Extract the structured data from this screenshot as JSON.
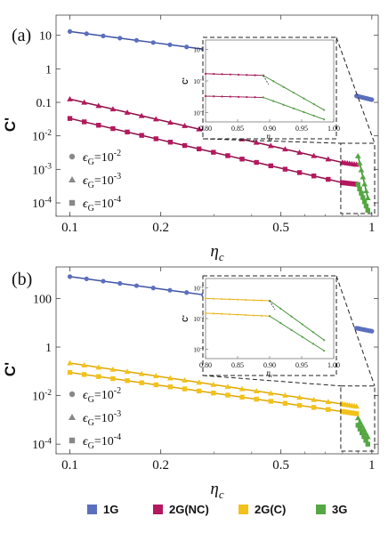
{
  "figure": {
    "legend_items": [
      {
        "key": "1G",
        "label": "1G",
        "color": "#5B6FBF"
      },
      {
        "key": "2GNC",
        "label": "2G(NC)",
        "color": "#B5185E"
      },
      {
        "key": "2GC",
        "label": "2G(C)",
        "color": "#F2C21A"
      },
      {
        "key": "3G",
        "label": "3G",
        "color": "#55A744"
      }
    ]
  },
  "chart_data": [
    {
      "type": "line",
      "panel_label": "(a)",
      "xlabel": "η",
      "xlabel_sub": "c",
      "ylabel": "C'",
      "xscale": "log",
      "yscale": "log",
      "xlim": [
        0.09,
        1.05
      ],
      "ylim": [
        4e-05,
        40
      ],
      "x_ticks": [
        {
          "v": 0.1,
          "label": "0.1"
        },
        {
          "v": 0.2,
          "label": "0.2"
        },
        {
          "v": 0.5,
          "label": "0.5"
        },
        {
          "v": 1,
          "label": "1"
        }
      ],
      "y_ticks": [
        {
          "v": 10,
          "base": "10",
          "exp": ""
        },
        {
          "v": 1,
          "base": "1",
          "exp": ""
        },
        {
          "v": 0.1,
          "base": "0.1",
          "exp": ""
        },
        {
          "v": 0.01,
          "base": "10",
          "exp": "-2"
        },
        {
          "v": 0.001,
          "base": "10",
          "exp": "-3"
        },
        {
          "v": 0.0001,
          "base": "10",
          "exp": "-4"
        }
      ],
      "marker_legend": [
        {
          "marker": "circle",
          "text_pre": "ϵ",
          "text_sub": "G",
          "text_post": "=10",
          "text_exp": "-2"
        },
        {
          "marker": "triangle",
          "text_pre": "ϵ",
          "text_sub": "G",
          "text_post": "=10",
          "text_exp": "-3"
        },
        {
          "marker": "square",
          "text_pre": "ϵ",
          "text_sub": "G",
          "text_post": "=10",
          "text_exp": "-4"
        }
      ],
      "series": [
        {
          "group": "1G",
          "marker": "circle",
          "x0": 0.1,
          "x1": 0.46,
          "y0": 13,
          "y1": 2.1,
          "n": 13
        },
        {
          "group": "1G",
          "marker": "circle",
          "x0": 0.89,
          "x1": 1.0,
          "y0": 0.155,
          "y1": 0.12,
          "n": 11
        },
        {
          "group": "2GNC",
          "marker": "triangle",
          "x0": 0.1,
          "x1": 0.8,
          "y0": 0.125,
          "y1": 0.0016,
          "n": 20
        },
        {
          "group": "2GNC",
          "marker": "triangle",
          "x0": 0.8,
          "x1": 0.89,
          "y0": 0.0016,
          "y1": 0.0014,
          "n": 7
        },
        {
          "group": "3G",
          "marker": "triangle",
          "x0": 0.9,
          "x1": 0.97,
          "y0": 0.0025,
          "y1": 0.00014,
          "n": 7
        },
        {
          "group": "2GNC",
          "marker": "square",
          "x0": 0.1,
          "x1": 0.8,
          "y0": 0.033,
          "y1": 0.0004,
          "n": 20
        },
        {
          "group": "2GNC",
          "marker": "square",
          "x0": 0.8,
          "x1": 0.89,
          "y0": 0.0004,
          "y1": 0.00036,
          "n": 7
        },
        {
          "group": "3G",
          "marker": "square",
          "x0": 0.9,
          "x1": 0.97,
          "y0": 0.00035,
          "y1": 6e-05,
          "n": 7
        }
      ],
      "inset": {
        "xlim": [
          0.8,
          1.0
        ],
        "ylim": [
          5e-05,
          0.02
        ],
        "x_ticks": [
          {
            "v": 0.8,
            "label": "0.80"
          },
          {
            "v": 0.85,
            "label": "0.85"
          },
          {
            "v": 0.9,
            "label": "0.90"
          },
          {
            "v": 0.95,
            "label": "0.95"
          },
          {
            "v": 1.0,
            "label": "1.00"
          }
        ],
        "y_ticks": [
          {
            "v": 0.01,
            "base": "10",
            "exp": "-2"
          },
          {
            "v": 0.001,
            "base": "10",
            "exp": "-3"
          },
          {
            "v": 0.0001,
            "base": "10",
            "exp": "-4"
          }
        ],
        "xlabel": "η",
        "xlabel_sub": "c",
        "ylabel": "C'",
        "lines": [
          {
            "group": "2GNC",
            "x0": 0.8,
            "x1": 0.89,
            "y0": 0.0017,
            "y1": 0.0015,
            "n": 8
          },
          {
            "group": "3G",
            "x0": 0.89,
            "x1": 0.985,
            "y0": 0.0015,
            "y1": 0.00012,
            "n": 7
          },
          {
            "group": "2GNC",
            "x0": 0.8,
            "x1": 0.89,
            "y0": 0.00033,
            "y1": 0.0003,
            "n": 8
          },
          {
            "group": "3G",
            "x0": 0.89,
            "x1": 0.985,
            "y0": 0.0003,
            "y1": 6e-05,
            "n": 7
          }
        ]
      }
    },
    {
      "type": "line",
      "panel_label": "(b)",
      "xlabel": "η",
      "xlabel_sub": "c",
      "ylabel": "C'",
      "xscale": "log",
      "yscale": "log",
      "xlim": [
        0.09,
        1.05
      ],
      "ylim": [
        4e-05,
        2000
      ],
      "x_ticks": [
        {
          "v": 0.1,
          "label": "0.1"
        },
        {
          "v": 0.2,
          "label": "0.2"
        },
        {
          "v": 0.5,
          "label": "0.5"
        },
        {
          "v": 1,
          "label": "1"
        }
      ],
      "y_ticks": [
        {
          "v": 100,
          "base": "100",
          "exp": ""
        },
        {
          "v": 1,
          "base": "1",
          "exp": ""
        },
        {
          "v": 0.01,
          "base": "10",
          "exp": "-2"
        },
        {
          "v": 0.0001,
          "base": "10",
          "exp": "-4"
        }
      ],
      "marker_legend": [
        {
          "marker": "circle",
          "text_pre": "ϵ",
          "text_sub": "G",
          "text_post": "=10",
          "text_exp": "-2"
        },
        {
          "marker": "triangle",
          "text_pre": "ϵ",
          "text_sub": "G",
          "text_post": "=10",
          "text_exp": "-3"
        },
        {
          "marker": "square",
          "text_pre": "ϵ",
          "text_sub": "G",
          "text_post": "=10",
          "text_exp": "-4"
        }
      ],
      "series": [
        {
          "group": "1G",
          "marker": "circle",
          "x0": 0.1,
          "x1": 0.46,
          "y0": 800,
          "y1": 60,
          "n": 13
        },
        {
          "group": "1G",
          "marker": "circle",
          "x0": 0.89,
          "x1": 1.0,
          "y0": 6,
          "y1": 4.5,
          "n": 11
        },
        {
          "group": "2GC",
          "marker": "triangle",
          "x0": 0.1,
          "x1": 0.8,
          "y0": 0.22,
          "y1": 0.0045,
          "n": 20
        },
        {
          "group": "2GC",
          "marker": "triangle",
          "x0": 0.8,
          "x1": 0.89,
          "y0": 0.0045,
          "y1": 0.0036,
          "n": 7
        },
        {
          "group": "3G",
          "marker": "triangle",
          "x0": 0.9,
          "x1": 0.97,
          "y0": 0.0012,
          "y1": 0.0002,
          "n": 6
        },
        {
          "group": "2GC",
          "marker": "square",
          "x0": 0.1,
          "x1": 0.8,
          "y0": 0.09,
          "y1": 0.0022,
          "n": 20
        },
        {
          "group": "2GC",
          "marker": "square",
          "x0": 0.8,
          "x1": 0.89,
          "y0": 0.0022,
          "y1": 0.0018,
          "n": 7
        },
        {
          "group": "3G",
          "marker": "square",
          "x0": 0.9,
          "x1": 0.97,
          "y0": 0.0006,
          "y1": 0.0001,
          "n": 6
        }
      ],
      "inset": {
        "xlim": [
          0.8,
          1.0
        ],
        "ylim": [
          5e-05,
          0.02
        ],
        "x_ticks": [
          {
            "v": 0.8,
            "label": "0.80"
          },
          {
            "v": 0.85,
            "label": "0.85"
          },
          {
            "v": 0.9,
            "label": "0.90"
          },
          {
            "v": 0.95,
            "label": "0.95"
          },
          {
            "v": 1.0,
            "label": "1.00"
          }
        ],
        "y_ticks": [
          {
            "v": 0.01,
            "base": "10",
            "exp": "-2"
          },
          {
            "v": 0.001,
            "base": "10",
            "exp": "-3"
          },
          {
            "v": 0.0001,
            "base": "10",
            "exp": "-4"
          }
        ],
        "xlabel": "η",
        "xlabel_sub": "c",
        "ylabel": "C'",
        "lines": [
          {
            "group": "2GC",
            "x0": 0.8,
            "x1": 0.9,
            "y0": 0.0045,
            "y1": 0.0038,
            "n": 9
          },
          {
            "group": "3G",
            "x0": 0.9,
            "x1": 0.985,
            "y0": 0.0038,
            "y1": 0.0002,
            "n": 6
          },
          {
            "group": "2GC",
            "x0": 0.8,
            "x1": 0.9,
            "y0": 0.0015,
            "y1": 0.0012,
            "n": 9
          },
          {
            "group": "3G",
            "x0": 0.9,
            "x1": 0.985,
            "y0": 0.0012,
            "y1": 9e-05,
            "n": 6
          }
        ]
      }
    }
  ]
}
